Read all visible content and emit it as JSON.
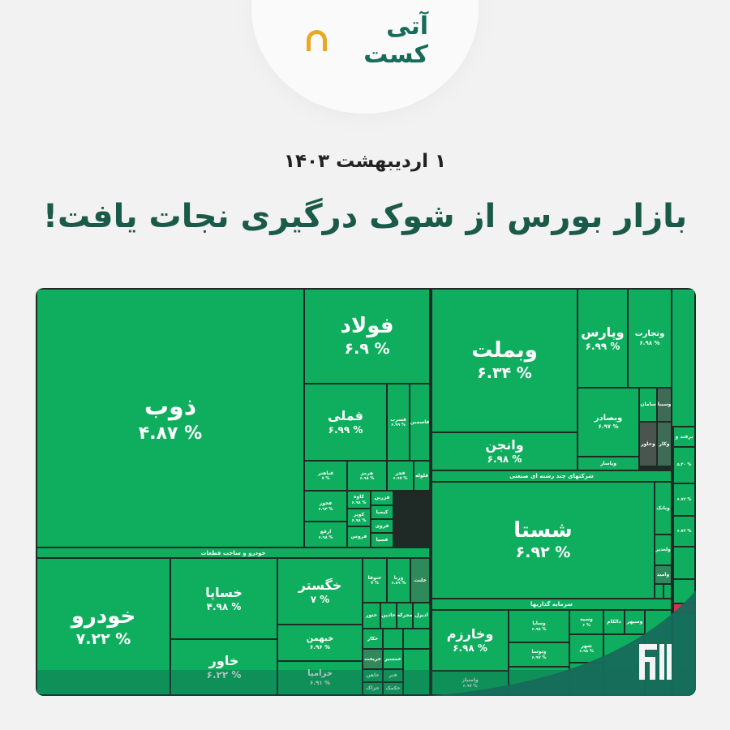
{
  "brand": {
    "logo_text": "آتی کست"
  },
  "header": {
    "date": "۱ اردیبهشت ۱۴۰۳",
    "title": "بازار بورس از شوک درگیری نجات یافت!"
  },
  "colors": {
    "positive": "#0fae5e",
    "dark_positive": "#2e8a5a",
    "neutral": "#4a5550",
    "negative": "#d6334f",
    "title": "#1a5a48",
    "logo_accent": "#e8a823"
  },
  "groups": [
    {
      "label": "خودرو و ساخت قطعات"
    },
    {
      "label": "شرکتهای چند رشته ای صنعتی"
    },
    {
      "label": "سرمایه گذاریها"
    }
  ],
  "tiles": [
    {
      "name": "ذوب",
      "pct": "۴.۸۷ %"
    },
    {
      "name": "فولاد",
      "pct": "۶.۹ %"
    },
    {
      "name": "فملی",
      "pct": "۶.۹۹ %"
    },
    {
      "name": "فسرب",
      "pct": "۶.۹۹ %"
    },
    {
      "name": "فاسمین",
      "pct": ""
    },
    {
      "name": "فباهنر",
      "pct": "۷ %"
    },
    {
      "name": "هرمز",
      "pct": "۶.۹۸ %"
    },
    {
      "name": "فجر",
      "pct": "۶.۹۷ %"
    },
    {
      "name": "فلوله",
      "pct": ""
    },
    {
      "name": "فخوز",
      "pct": "۶.۹۳ %"
    },
    {
      "name": "ارفع",
      "pct": "۶.۹۸ %"
    },
    {
      "name": "کاوه",
      "pct": "۶.۹۸ %"
    },
    {
      "name": "کویر",
      "pct": "۶.۹۸ %"
    },
    {
      "name": "فروس",
      "pct": ""
    },
    {
      "name": "فزرین",
      "pct": ""
    },
    {
      "name": "کیمیا",
      "pct": ""
    },
    {
      "name": "فروی",
      "pct": ""
    },
    {
      "name": "فسپا",
      "pct": ""
    },
    {
      "name": "خودرو",
      "pct": "۷.۲۲ %"
    },
    {
      "name": "خساپا",
      "pct": "۴.۹۸ %"
    },
    {
      "name": "خاور",
      "pct": "۶.۲۲ %"
    },
    {
      "name": "خگستر",
      "pct": "۷ %"
    },
    {
      "name": "خبهمن",
      "pct": "۶.۹۶ %"
    },
    {
      "name": "خزامیا",
      "pct": "۶.۹۱ %"
    },
    {
      "name": "ختوقا",
      "pct": "۷ %"
    },
    {
      "name": "ورنا",
      "pct": "۶.۸۹ %"
    },
    {
      "name": "خلنت",
      "pct": ""
    },
    {
      "name": "ختور",
      "pct": ""
    },
    {
      "name": "خاذین",
      "pct": ""
    },
    {
      "name": "محرکه",
      "pct": ""
    },
    {
      "name": "ادیزل",
      "pct": ""
    },
    {
      "name": "خکار",
      "pct": ""
    },
    {
      "name": "خریخت",
      "pct": ""
    },
    {
      "name": "خمسیر",
      "pct": ""
    },
    {
      "name": "خاهن",
      "pct": ""
    },
    {
      "name": "فنر",
      "pct": ""
    },
    {
      "name": "خزاک",
      "pct": ""
    },
    {
      "name": "خکمک",
      "pct": ""
    },
    {
      "name": "وبملت",
      "pct": "۶.۳۴ %"
    },
    {
      "name": "وانجن",
      "pct": "۶.۹۸ %"
    },
    {
      "name": "وپارس",
      "pct": "۶.۹۹ %"
    },
    {
      "name": "وتجارت",
      "pct": "۶.۹۸ %"
    },
    {
      "name": "وبصادر",
      "pct": "۶.۹۷ %"
    },
    {
      "name": "سامان",
      "pct": ""
    },
    {
      "name": "وسینا",
      "pct": ""
    },
    {
      "name": "وخاور",
      "pct": ""
    },
    {
      "name": "وکار",
      "pct": ""
    },
    {
      "name": "وپاسار",
      "pct": ""
    },
    {
      "name": "شستا",
      "pct": "۶.۹۲ %"
    },
    {
      "name": "وبانک",
      "pct": ""
    },
    {
      "name": "ولغدیر",
      "pct": ""
    },
    {
      "name": "وامید",
      "pct": ""
    },
    {
      "name": "وخارزم",
      "pct": "۶.۹۸ %"
    },
    {
      "name": "وامتیاز",
      "pct": "۶.۹۷ %"
    },
    {
      "name": "وسایا",
      "pct": "۶.۹۸ %"
    },
    {
      "name": "وتوسا",
      "pct": "۶.۹۷ %"
    },
    {
      "name": "وسپه",
      "pct": "۶ %"
    },
    {
      "name": "شهر",
      "pct": "۶.۹۸ %"
    },
    {
      "name": "دالکام",
      "pct": ""
    },
    {
      "name": "وسپهر",
      "pct": ""
    },
    {
      "name": "برقند و",
      "pct": ""
    },
    {
      "name": "",
      "pct": "۵.۴۰ %"
    },
    {
      "name": "",
      "pct": "۶.۷۲ %"
    },
    {
      "name": "",
      "pct": "۶.۷۲ %"
    }
  ]
}
